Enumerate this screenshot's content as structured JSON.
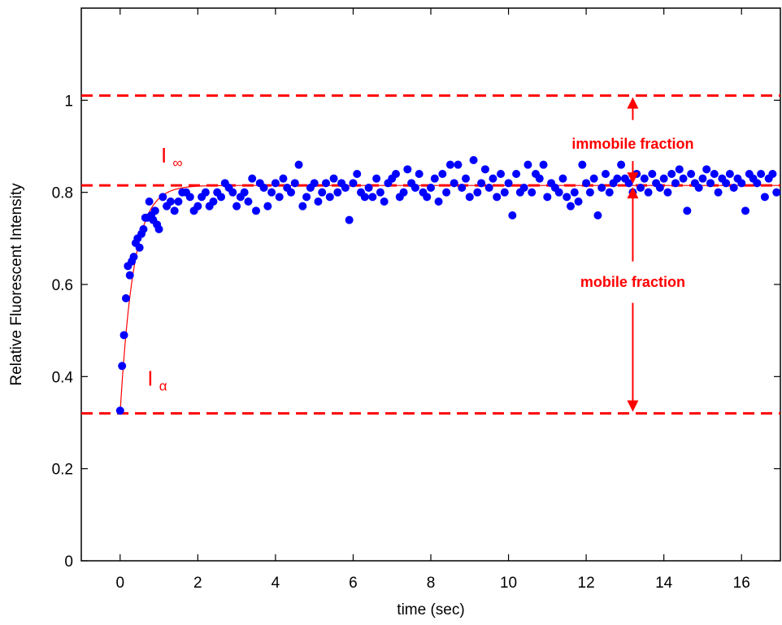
{
  "chart_data": {
    "type": "scatter",
    "title": "",
    "xlabel": "time (sec)",
    "ylabel": "Relative Fluorescent Intensity",
    "xlim": [
      -1,
      17.0
    ],
    "ylim": [
      0,
      1.2
    ],
    "xticks": [
      0,
      2,
      4,
      6,
      8,
      10,
      12,
      14,
      16
    ],
    "yticks": [
      0,
      0.2,
      0.4,
      0.6,
      0.8,
      1
    ],
    "x_tick_labels": [
      "0",
      "2",
      "4",
      "6",
      "8",
      "10",
      "12",
      "14",
      "16"
    ],
    "y_tick_labels": [
      "0",
      "0.2",
      "0.4",
      "0.6",
      "0.8",
      "1"
    ],
    "grid": false,
    "colors": {
      "points": "#0000ff",
      "fit": "#ff0000",
      "annotation": "#ff0000",
      "axes": "#000000"
    },
    "reference_lines": [
      {
        "y": 1.01,
        "style": "dashed",
        "color": "#ff0000"
      },
      {
        "y": 0.815,
        "style": "dashed",
        "color": "#ff0000"
      },
      {
        "y": 0.32,
        "style": "dashed",
        "color": "#ff0000"
      }
    ],
    "fit_curve": {
      "model": "I(t) = I_alpha + (I_inf - I_alpha)(1 - exp(-t/tau))",
      "I_alpha": 0.32,
      "I_inf": 0.815,
      "tau": 0.35,
      "color": "#ff0000"
    },
    "annotations": {
      "immobile_fraction": "immobile fraction",
      "mobile_fraction": "mobile fraction",
      "i_inf_symbol": "I",
      "i_inf_sub": "∞",
      "i_alpha_symbol": "I",
      "i_alpha_sub": "α"
    },
    "series": [
      {
        "marker": "circle",
        "color": "#0000ff",
        "x": [
          0.0,
          0.05,
          0.1,
          0.15,
          0.2,
          0.25,
          0.3,
          0.35,
          0.4,
          0.45,
          0.5,
          0.55,
          0.6,
          0.65,
          0.7,
          0.75,
          0.8,
          0.85,
          0.9,
          0.95,
          1.0,
          1.1,
          1.2,
          1.3,
          1.4,
          1.5,
          1.6,
          1.7,
          1.8,
          1.9,
          2.0,
          2.1,
          2.2,
          2.3,
          2.4,
          2.5,
          2.6,
          2.7,
          2.8,
          2.9,
          3.0,
          3.1,
          3.2,
          3.3,
          3.4,
          3.5,
          3.6,
          3.7,
          3.8,
          3.9,
          4.0,
          4.1,
          4.2,
          4.3,
          4.4,
          4.5,
          4.6,
          4.7,
          4.8,
          4.9,
          5.0,
          5.1,
          5.2,
          5.3,
          5.4,
          5.5,
          5.6,
          5.7,
          5.8,
          5.9,
          6.0,
          6.1,
          6.2,
          6.3,
          6.4,
          6.5,
          6.6,
          6.7,
          6.8,
          6.9,
          7.0,
          7.1,
          7.2,
          7.3,
          7.4,
          7.5,
          7.6,
          7.7,
          7.8,
          7.9,
          8.0,
          8.1,
          8.2,
          8.3,
          8.4,
          8.5,
          8.6,
          8.7,
          8.8,
          8.9,
          9.0,
          9.1,
          9.2,
          9.3,
          9.4,
          9.5,
          9.6,
          9.7,
          9.8,
          9.9,
          10.0,
          10.1,
          10.2,
          10.3,
          10.4,
          10.5,
          10.6,
          10.7,
          10.8,
          10.9,
          11.0,
          11.1,
          11.2,
          11.3,
          11.4,
          11.5,
          11.6,
          11.7,
          11.8,
          11.9,
          12.0,
          12.1,
          12.2,
          12.3,
          12.4,
          12.5,
          12.6,
          12.7,
          12.8,
          12.9,
          13.0,
          13.1,
          13.2,
          13.3,
          13.4,
          13.5,
          13.6,
          13.7,
          13.8,
          13.9,
          14.0,
          14.1,
          14.2,
          14.3,
          14.4,
          14.5,
          14.6,
          14.7,
          14.8,
          14.9,
          15.0,
          15.1,
          15.2,
          15.3,
          15.4,
          15.5,
          15.6,
          15.7,
          15.8,
          15.9,
          16.0,
          16.1,
          16.2,
          16.3,
          16.4,
          16.5,
          16.6,
          16.7,
          16.8,
          16.9
        ],
        "y": [
          0.326,
          0.423,
          0.49,
          0.57,
          0.64,
          0.62,
          0.65,
          0.66,
          0.69,
          0.7,
          0.68,
          0.71,
          0.72,
          0.745,
          0.745,
          0.78,
          0.75,
          0.74,
          0.76,
          0.73,
          0.72,
          0.79,
          0.77,
          0.78,
          0.76,
          0.78,
          0.8,
          0.8,
          0.79,
          0.76,
          0.77,
          0.79,
          0.8,
          0.77,
          0.78,
          0.8,
          0.79,
          0.82,
          0.81,
          0.8,
          0.77,
          0.79,
          0.8,
          0.78,
          0.83,
          0.76,
          0.82,
          0.81,
          0.77,
          0.8,
          0.82,
          0.79,
          0.83,
          0.81,
          0.8,
          0.82,
          0.86,
          0.77,
          0.79,
          0.81,
          0.82,
          0.78,
          0.8,
          0.82,
          0.79,
          0.83,
          0.8,
          0.82,
          0.81,
          0.74,
          0.82,
          0.84,
          0.8,
          0.79,
          0.81,
          0.79,
          0.83,
          0.8,
          0.78,
          0.82,
          0.83,
          0.84,
          0.79,
          0.8,
          0.85,
          0.82,
          0.81,
          0.84,
          0.8,
          0.79,
          0.81,
          0.83,
          0.78,
          0.84,
          0.8,
          0.86,
          0.82,
          0.86,
          0.81,
          0.83,
          0.79,
          0.87,
          0.8,
          0.82,
          0.85,
          0.81,
          0.83,
          0.79,
          0.84,
          0.8,
          0.82,
          0.75,
          0.84,
          0.8,
          0.81,
          0.86,
          0.8,
          0.84,
          0.83,
          0.86,
          0.79,
          0.82,
          0.81,
          0.8,
          0.83,
          0.79,
          0.77,
          0.8,
          0.78,
          0.86,
          0.82,
          0.8,
          0.83,
          0.75,
          0.81,
          0.84,
          0.8,
          0.82,
          0.83,
          0.86,
          0.83,
          0.82,
          0.8,
          0.84,
          0.81,
          0.83,
          0.8,
          0.84,
          0.82,
          0.81,
          0.83,
          0.8,
          0.84,
          0.82,
          0.85,
          0.83,
          0.76,
          0.84,
          0.82,
          0.81,
          0.83,
          0.85,
          0.82,
          0.84,
          0.8,
          0.83,
          0.82,
          0.84,
          0.81,
          0.83,
          0.82,
          0.76,
          0.84,
          0.83,
          0.82,
          0.84,
          0.79,
          0.83,
          0.84,
          0.8
        ]
      }
    ]
  }
}
